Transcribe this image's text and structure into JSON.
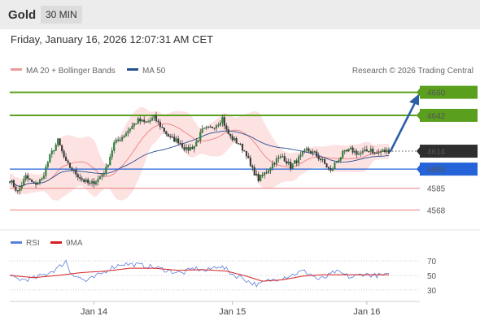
{
  "header": {
    "asset": "Gold",
    "timeframe": "30 MIN",
    "datetime": "Friday, January 16, 2026 12:07:31 AM CET"
  },
  "legend": {
    "ma20_label": "MA 20 + Bollinger Bands",
    "ma50_label": "MA 50",
    "copyright": "Research © 2026 Trading Central"
  },
  "colors": {
    "bullish_line": "#5aa01e",
    "bearish_line": "#ee7d7d",
    "current_box": "#2e2e2e",
    "pivot_line": "#2463d8",
    "arrow": "#2b5ea6",
    "ma20": "#ef7f7f",
    "ma50": "#27508f",
    "bollinger_fill": "#fcd8d8",
    "rsi": "#5c7fdc",
    "rsi_ma": "#d61e1e"
  },
  "chart_data": {
    "type": "candlestick",
    "instrument": "Gold",
    "interval": "30 MIN",
    "y_range": [
      4555,
      4668
    ],
    "levels": [
      {
        "label": "4660",
        "value": 4660,
        "kind": "resistance"
      },
      {
        "label": "4642",
        "value": 4642,
        "kind": "resistance"
      },
      {
        "label": "4614",
        "value": 4614,
        "kind": "current"
      },
      {
        "label": "4600",
        "value": 4600,
        "kind": "pivot"
      },
      {
        "label": "4585",
        "value": 4585,
        "kind": "support"
      },
      {
        "label": "4568",
        "value": 4568,
        "kind": "support"
      }
    ],
    "x_labels": [
      "Jan 14",
      "Jan 15",
      "Jan 16"
    ],
    "x_label_positions": [
      42,
      111,
      178
    ],
    "x_count": 190,
    "price_path": [
      [
        0,
        4592
      ],
      [
        4,
        4582
      ],
      [
        8,
        4594
      ],
      [
        12,
        4588
      ],
      [
        16,
        4592
      ],
      [
        20,
        4610
      ],
      [
        24,
        4622
      ],
      [
        28,
        4605
      ],
      [
        32,
        4598
      ],
      [
        36,
        4592
      ],
      [
        40,
        4588
      ],
      [
        44,
        4592
      ],
      [
        48,
        4600
      ],
      [
        52,
        4620
      ],
      [
        56,
        4625
      ],
      [
        60,
        4632
      ],
      [
        64,
        4638
      ],
      [
        68,
        4636
      ],
      [
        72,
        4640
      ],
      [
        76,
        4632
      ],
      [
        80,
        4624
      ],
      [
        84,
        4622
      ],
      [
        88,
        4615
      ],
      [
        92,
        4618
      ],
      [
        96,
        4630
      ],
      [
        100,
        4632
      ],
      [
        104,
        4636
      ],
      [
        106,
        4640
      ],
      [
        108,
        4630
      ],
      [
        110,
        4625
      ],
      [
        114,
        4620
      ],
      [
        118,
        4612
      ],
      [
        120,
        4602
      ],
      [
        124,
        4592
      ],
      [
        128,
        4598
      ],
      [
        132,
        4606
      ],
      [
        136,
        4610
      ],
      [
        140,
        4602
      ],
      [
        144,
        4608
      ],
      [
        148,
        4615
      ],
      [
        152,
        4612
      ],
      [
        156,
        4606
      ],
      [
        160,
        4598
      ],
      [
        162,
        4604
      ],
      [
        166,
        4612
      ],
      [
        170,
        4615
      ],
      [
        174,
        4612
      ],
      [
        178,
        4614
      ],
      [
        180,
        4616
      ],
      [
        182,
        4612
      ],
      [
        186,
        4614
      ],
      [
        189,
        4614
      ]
    ],
    "projection": [
      [
        189,
        4614
      ],
      [
        200,
        4660
      ]
    ],
    "rsi_panel": {
      "legend": [
        "RSI",
        "9MA"
      ],
      "ticks": [
        70,
        50,
        30
      ],
      "range": [
        22,
        78
      ],
      "rsi_path": [
        [
          0,
          48
        ],
        [
          6,
          44
        ],
        [
          12,
          46
        ],
        [
          18,
          52
        ],
        [
          24,
          60
        ],
        [
          28,
          70
        ],
        [
          30,
          55
        ],
        [
          34,
          48
        ],
        [
          38,
          42
        ],
        [
          42,
          47
        ],
        [
          46,
          53
        ],
        [
          50,
          60
        ],
        [
          56,
          66
        ],
        [
          62,
          65
        ],
        [
          68,
          63
        ],
        [
          74,
          60
        ],
        [
          80,
          56
        ],
        [
          86,
          53
        ],
        [
          92,
          60
        ],
        [
          98,
          56
        ],
        [
          104,
          64
        ],
        [
          108,
          58
        ],
        [
          112,
          50
        ],
        [
          116,
          47
        ],
        [
          120,
          40
        ],
        [
          124,
          37
        ],
        [
          128,
          42
        ],
        [
          134,
          46
        ],
        [
          140,
          50
        ],
        [
          146,
          56
        ],
        [
          150,
          52
        ],
        [
          154,
          44
        ],
        [
          158,
          48
        ],
        [
          162,
          55
        ],
        [
          166,
          52
        ],
        [
          170,
          47
        ],
        [
          176,
          52
        ],
        [
          182,
          50
        ],
        [
          189,
          50
        ]
      ],
      "ma_path": [
        [
          0,
          50
        ],
        [
          12,
          47
        ],
        [
          24,
          50
        ],
        [
          36,
          54
        ],
        [
          48,
          56
        ],
        [
          60,
          60
        ],
        [
          72,
          60
        ],
        [
          84,
          57
        ],
        [
          96,
          58
        ],
        [
          108,
          56
        ],
        [
          118,
          49
        ],
        [
          126,
          42
        ],
        [
          136,
          44
        ],
        [
          146,
          49
        ],
        [
          156,
          51
        ],
        [
          166,
          51
        ],
        [
          176,
          51
        ],
        [
          189,
          51
        ]
      ]
    }
  }
}
